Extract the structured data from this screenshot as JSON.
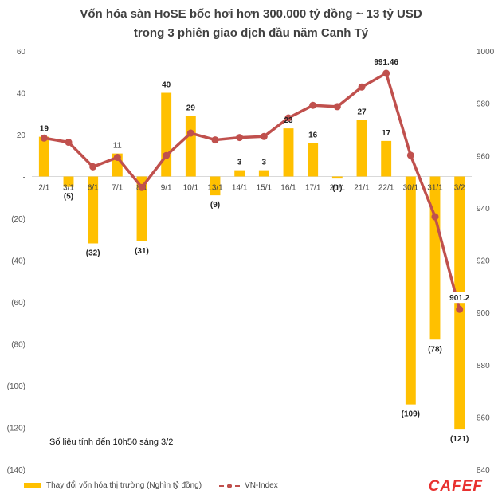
{
  "title": {
    "line1": "Vốn hóa sàn HoSE bốc hơi hơn 300.000 tỷ đồng ~ 13 tỷ USD",
    "line2": "trong 3 phiên giao dịch đầu năm Canh Tý"
  },
  "note": "Số liệu tính đến 10h50  sáng 3/2",
  "logo": "CAFEF",
  "legend": {
    "bar_label": "Thay đổi vốn hóa thị trường (Nghìn tỷ đồng)",
    "line_label": "VN-Index"
  },
  "colors": {
    "bar": "#FFC000",
    "line": "#C0504D",
    "grid": "#d9d9d9"
  },
  "chart_data": {
    "type": "bar",
    "categories": [
      "2/1",
      "3/1",
      "6/1",
      "7/1",
      "8/1",
      "9/1",
      "10/1",
      "13/1",
      "14/1",
      "15/1",
      "16/1",
      "17/1",
      "20/1",
      "21/1",
      "22/1",
      "30/1",
      "31/1",
      "3/2"
    ],
    "series": [
      {
        "name": "Thay đổi vốn hóa thị trường (Nghìn tỷ đồng)",
        "type": "bar",
        "axis": "left",
        "values": [
          19,
          -5,
          -32,
          11,
          -31,
          40,
          29,
          -9,
          3,
          3,
          23,
          16,
          -1,
          27,
          17,
          -109,
          -78,
          -121
        ],
        "labels": [
          "19",
          "(5)",
          "(32)",
          "11",
          "(31)",
          "40",
          "29",
          "(9)",
          "3",
          "3",
          "23",
          "16",
          "(1)",
          "27",
          "17",
          "(109)",
          "(78)",
          "(121)"
        ]
      },
      {
        "name": "VN-Index",
        "type": "line",
        "axis": "right",
        "values": [
          966.7,
          965.1,
          955.7,
          959.3,
          947.8,
          960.0,
          968.6,
          966.0,
          966.9,
          967.3,
          974.4,
          979.2,
          978.7,
          986.2,
          991.46,
          960.1,
          936.6,
          901.2
        ],
        "labels": {
          "14": "991.46",
          "17": "901.2"
        }
      }
    ],
    "y_left": {
      "ylim": [
        -140,
        60
      ],
      "ticks": [
        60,
        40,
        20,
        0,
        -20,
        -40,
        -60,
        -80,
        -100,
        -120,
        -140
      ],
      "tick_labels": [
        "60",
        "40",
        "20",
        "-",
        "(20)",
        "(40)",
        "(60)",
        "(80)",
        "(100)",
        "(120)",
        "(140)"
      ]
    },
    "y_right": {
      "ylim": [
        840,
        1000
      ],
      "ticks": [
        1000,
        980,
        960,
        940,
        920,
        900,
        880,
        860,
        840
      ],
      "tick_labels": [
        "1000",
        "980",
        "960",
        "940",
        "920",
        "900",
        "880",
        "860",
        "840"
      ]
    },
    "grid": false,
    "legend_position": "bottom-left"
  }
}
